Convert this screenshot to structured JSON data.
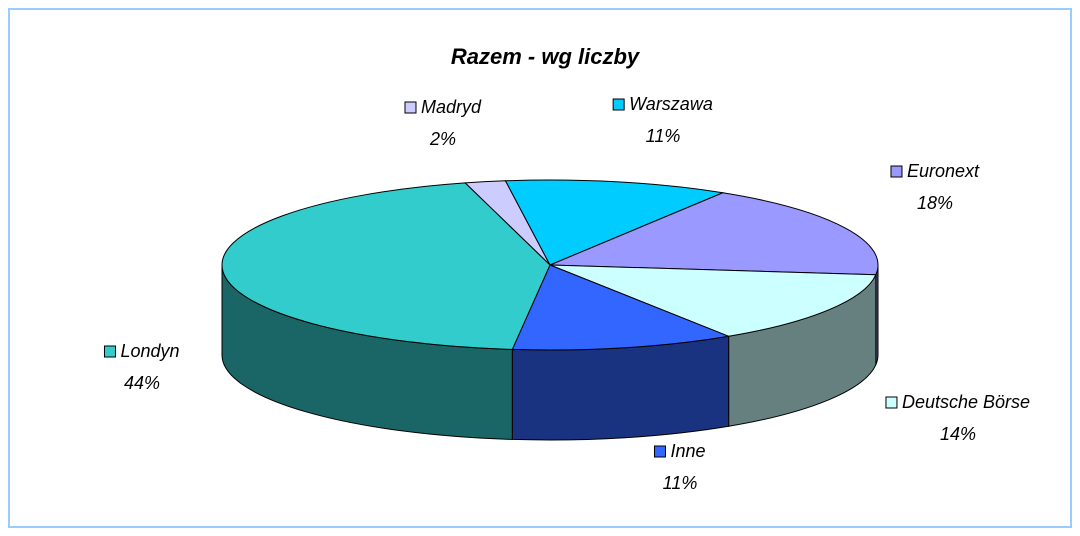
{
  "chart_data": {
    "type": "pie",
    "title": "Razem - wg liczby",
    "categories": [
      "Madryd",
      "Warszawa",
      "Euronext",
      "Deutsche Börse",
      "Inne",
      "Londyn"
    ],
    "values": [
      2,
      11,
      18,
      14,
      11,
      44
    ],
    "value_labels": [
      "2%",
      "11%",
      "18%",
      "14%",
      "11%",
      "44%"
    ],
    "colors": [
      "#ccccff",
      "#00ccff",
      "#9999ff",
      "#ccffff",
      "#3366ff",
      "#33cccc"
    ]
  }
}
